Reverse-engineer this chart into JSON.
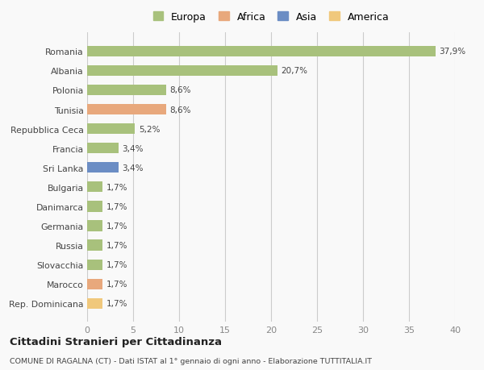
{
  "categories": [
    "Romania",
    "Albania",
    "Polonia",
    "Tunisia",
    "Repubblica Ceca",
    "Francia",
    "Sri Lanka",
    "Bulgaria",
    "Danimarca",
    "Germania",
    "Russia",
    "Slovacchia",
    "Marocco",
    "Rep. Dominicana"
  ],
  "values": [
    37.9,
    20.7,
    8.6,
    8.6,
    5.2,
    3.4,
    3.4,
    1.7,
    1.7,
    1.7,
    1.7,
    1.7,
    1.7,
    1.7
  ],
  "labels": [
    "37,9%",
    "20,7%",
    "8,6%",
    "8,6%",
    "5,2%",
    "3,4%",
    "3,4%",
    "1,7%",
    "1,7%",
    "1,7%",
    "1,7%",
    "1,7%",
    "1,7%",
    "1,7%"
  ],
  "colors": [
    "#a8c17c",
    "#a8c17c",
    "#a8c17c",
    "#e8a87c",
    "#a8c17c",
    "#a8c17c",
    "#6b8dc4",
    "#a8c17c",
    "#a8c17c",
    "#a8c17c",
    "#a8c17c",
    "#a8c17c",
    "#e8a87c",
    "#f0c87c"
  ],
  "legend_labels": [
    "Europa",
    "Africa",
    "Asia",
    "America"
  ],
  "legend_colors": [
    "#a8c17c",
    "#e8a87c",
    "#6b8dc4",
    "#f0c87c"
  ],
  "title": "Cittadini Stranieri per Cittadinanza",
  "subtitle": "COMUNE DI RAGALNA (CT) - Dati ISTAT al 1° gennaio di ogni anno - Elaborazione TUTTITALIA.IT",
  "xlim": [
    0,
    40
  ],
  "xticks": [
    0,
    5,
    10,
    15,
    20,
    25,
    30,
    35,
    40
  ],
  "background_color": "#f9f9f9"
}
